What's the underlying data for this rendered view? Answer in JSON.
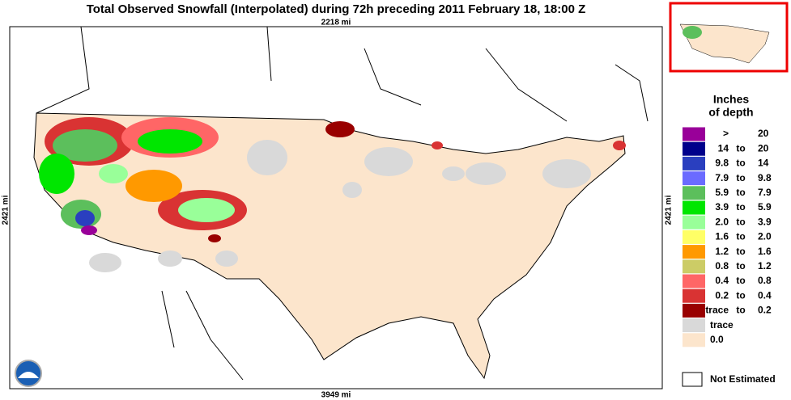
{
  "title": "Total Observed Snowfall (Interpolated) during 72h preceding 2011 February 18, 18:00 Z",
  "scale": {
    "top": "2218 mi",
    "left": "2421 mi",
    "right": "2421 mi",
    "bottom": "3949 mi"
  },
  "legend": {
    "title_line1": "Inches",
    "title_line2": "of depth",
    "items": [
      {
        "color": "#990099",
        "low": ">",
        "high": "20"
      },
      {
        "color": "#00008b",
        "low": "14",
        "to": "to",
        "high": "20"
      },
      {
        "color": "#2a3fbf",
        "low": "9.8",
        "to": "to",
        "high": "14"
      },
      {
        "color": "#6b6bff",
        "low": "7.9",
        "to": "to",
        "high": "9.8"
      },
      {
        "color": "#5cbf5c",
        "low": "5.9",
        "to": "to",
        "high": "7.9"
      },
      {
        "color": "#00e600",
        "low": "3.9",
        "to": "to",
        "high": "5.9"
      },
      {
        "color": "#99ff99",
        "low": "2.0",
        "to": "to",
        "high": "3.9"
      },
      {
        "color": "#ffff66",
        "low": "1.6",
        "to": "to",
        "high": "2.0"
      },
      {
        "color": "#ff9900",
        "low": "1.2",
        "to": "to",
        "high": "1.6"
      },
      {
        "color": "#cccc66",
        "low": "0.8",
        "to": "to",
        "high": "1.2"
      },
      {
        "color": "#ff6666",
        "low": "0.4",
        "to": "to",
        "high": "0.8"
      },
      {
        "color": "#d93333",
        "low": "0.2",
        "to": "to",
        "high": "0.4"
      },
      {
        "color": "#990000",
        "low": "trace",
        "to": "to",
        "high": "0.2"
      },
      {
        "color": "#d9d9d9",
        "low": "trace"
      },
      {
        "color": "#fce5cc",
        "low": "0.0"
      }
    ],
    "not_estimated": {
      "color": "#ffffff",
      "label": "Not Estimated"
    }
  }
}
